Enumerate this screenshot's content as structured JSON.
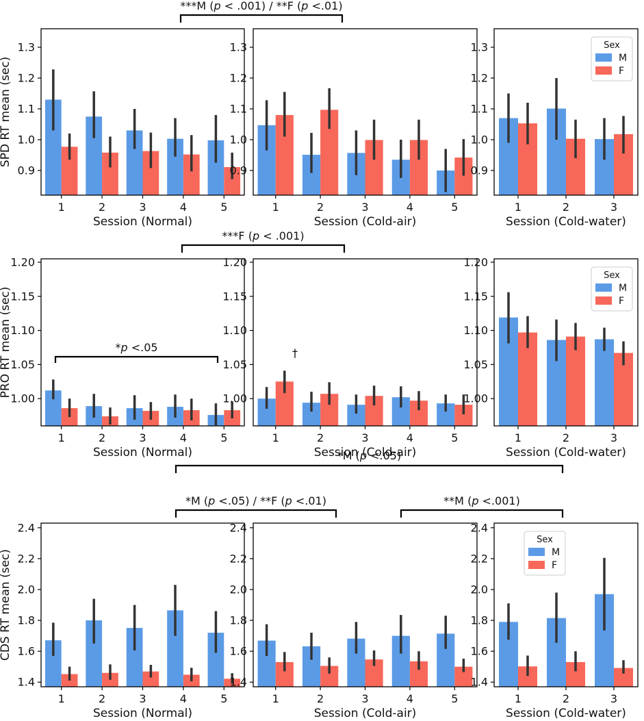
{
  "colors": {
    "M": "#5b9be6",
    "F": "#f7685a",
    "error_bar": "#333333",
    "axes": "#000000"
  },
  "legend": {
    "title": "Sex",
    "labels": [
      "M",
      "F"
    ]
  },
  "chart_data": [
    {
      "type": "bar",
      "id": "spd-normal",
      "row": 0,
      "col": 0,
      "ylabel": "SPD RT mean (sec)",
      "xlabel": "Session (Normal)",
      "categories": [
        "1",
        "2",
        "3",
        "4",
        "5"
      ],
      "ylim": [
        0.82,
        1.36
      ],
      "yticks": [
        0.9,
        1.0,
        1.1,
        1.2,
        1.3
      ],
      "ytick_labels": [
        "0.9",
        "1.0",
        "1.1",
        "1.2",
        "1.3"
      ],
      "legend": false,
      "series": [
        {
          "name": "M",
          "values": [
            1.13,
            1.075,
            1.03,
            1.003,
            0.998
          ],
          "err_low": [
            1.03,
            1.005,
            0.97,
            0.945,
            0.925
          ],
          "err_high": [
            1.228,
            1.157,
            1.1,
            1.07,
            1.08
          ]
        },
        {
          "name": "F",
          "values": [
            0.977,
            0.958,
            0.963,
            0.952,
            0.911
          ],
          "err_low": [
            0.935,
            0.91,
            0.908,
            0.897,
            0.872
          ],
          "err_high": [
            1.02,
            1.01,
            1.023,
            1.015,
            0.958
          ]
        }
      ]
    },
    {
      "type": "bar",
      "id": "spd-cold-air",
      "row": 0,
      "col": 1,
      "ylabel": "",
      "xlabel": "Session (Cold-air)",
      "categories": [
        "1",
        "2",
        "3",
        "4",
        "5"
      ],
      "ylim": [
        0.82,
        1.36
      ],
      "yticks": [
        0.9,
        1.0,
        1.1,
        1.2,
        1.3
      ],
      "ytick_labels": [
        "0.9",
        "1.0",
        "1.1",
        "1.2",
        "1.3"
      ],
      "legend": false,
      "series": [
        {
          "name": "M",
          "values": [
            1.047,
            0.951,
            0.957,
            0.935,
            0.9
          ],
          "err_low": [
            0.965,
            0.892,
            0.885,
            0.876,
            0.83
          ],
          "err_high": [
            1.128,
            1.022,
            1.03,
            1.0,
            0.97
          ]
        },
        {
          "name": "F",
          "values": [
            1.08,
            1.097,
            0.999,
            0.999,
            0.942
          ],
          "err_low": [
            1.01,
            1.035,
            0.935,
            0.935,
            0.883
          ],
          "err_high": [
            1.155,
            1.167,
            1.065,
            1.065,
            1.002
          ]
        }
      ]
    },
    {
      "type": "bar",
      "id": "spd-cold-water",
      "row": 0,
      "col": 2,
      "ylabel": "",
      "xlabel": "Session (Cold-water)",
      "categories": [
        "1",
        "2",
        "3"
      ],
      "ylim": [
        0.82,
        1.36
      ],
      "yticks": [
        0.9,
        1.0,
        1.1,
        1.2,
        1.3
      ],
      "ytick_labels": [
        "0.9",
        "1.0",
        "1.1",
        "1.2",
        "1.3"
      ],
      "legend": true,
      "series": [
        {
          "name": "M",
          "values": [
            1.07,
            1.101,
            1.002
          ],
          "err_low": [
            0.99,
            1.0,
            0.935
          ],
          "err_high": [
            1.15,
            1.2,
            1.07
          ]
        },
        {
          "name": "F",
          "values": [
            1.053,
            1.003,
            1.018
          ],
          "err_low": [
            0.985,
            0.94,
            0.955
          ],
          "err_high": [
            1.12,
            1.065,
            1.077
          ]
        }
      ]
    },
    {
      "type": "bar",
      "id": "pro-normal",
      "row": 1,
      "col": 0,
      "ylabel": "PRO RT mean (sec)",
      "xlabel": "Session (Normal)",
      "categories": [
        "1",
        "2",
        "3",
        "4",
        "5"
      ],
      "ylim": [
        0.96,
        1.205
      ],
      "yticks": [
        1.0,
        1.05,
        1.1,
        1.15,
        1.2
      ],
      "ytick_labels": [
        "1.00",
        "1.05",
        "1.10",
        "1.15",
        "1.20"
      ],
      "legend": false,
      "series": [
        {
          "name": "M",
          "values": [
            1.012,
            0.989,
            0.986,
            0.988,
            0.976
          ],
          "err_low": [
            0.999,
            0.972,
            0.969,
            0.972,
            0.961
          ],
          "err_high": [
            1.028,
            1.007,
            1.005,
            1.006,
            0.993
          ]
        },
        {
          "name": "F",
          "values": [
            0.986,
            0.974,
            0.982,
            0.983,
            0.983
          ],
          "err_low": [
            0.973,
            0.962,
            0.969,
            0.968,
            0.971
          ],
          "err_high": [
            1.0,
            0.987,
            0.995,
            1.0,
            0.996
          ]
        }
      ]
    },
    {
      "type": "bar",
      "id": "pro-cold-air",
      "row": 1,
      "col": 1,
      "ylabel": "",
      "xlabel": "Session (Cold-air)",
      "categories": [
        "1",
        "2",
        "3",
        "4",
        "5"
      ],
      "ylim": [
        0.96,
        1.205
      ],
      "yticks": [
        1.0,
        1.05,
        1.1,
        1.15,
        1.2
      ],
      "ytick_labels": [
        "1.00",
        "1.05",
        "1.10",
        "1.15",
        "1.20"
      ],
      "legend": false,
      "series": [
        {
          "name": "M",
          "values": [
            1.0,
            0.994,
            0.991,
            1.002,
            0.993
          ],
          "err_low": [
            0.985,
            0.981,
            0.978,
            0.987,
            0.981
          ],
          "err_high": [
            1.017,
            1.01,
            1.006,
            1.018,
            1.006
          ]
        },
        {
          "name": "F",
          "values": [
            1.025,
            1.007,
            1.004,
            0.997,
            0.991
          ],
          "err_low": [
            1.008,
            0.991,
            0.99,
            0.983,
            0.977
          ],
          "err_high": [
            1.041,
            1.024,
            1.019,
            1.011,
            1.006
          ]
        }
      ]
    },
    {
      "type": "bar",
      "id": "pro-cold-water",
      "row": 1,
      "col": 2,
      "ylabel": "",
      "xlabel": "Session (Cold-water)",
      "categories": [
        "1",
        "2",
        "3"
      ],
      "ylim": [
        0.96,
        1.205
      ],
      "yticks": [
        1.0,
        1.05,
        1.1,
        1.15,
        1.2
      ],
      "ytick_labels": [
        "1.00",
        "1.05",
        "1.10",
        "1.15",
        "1.20"
      ],
      "legend": true,
      "series": [
        {
          "name": "M",
          "values": [
            1.119,
            1.086,
            1.087
          ],
          "err_low": [
            1.081,
            1.055,
            1.07
          ],
          "err_high": [
            1.156,
            1.116,
            1.104
          ]
        },
        {
          "name": "F",
          "values": [
            1.097,
            1.091,
            1.067
          ],
          "err_low": [
            1.074,
            1.071,
            1.049
          ],
          "err_high": [
            1.121,
            1.111,
            1.084
          ]
        }
      ]
    },
    {
      "type": "bar",
      "id": "cds-normal",
      "row": 2,
      "col": 0,
      "ylabel": "CDS RT mean (sec)",
      "xlabel": "Session (Normal)",
      "categories": [
        "1",
        "2",
        "3",
        "4",
        "5"
      ],
      "ylim": [
        1.37,
        2.43
      ],
      "yticks": [
        1.4,
        1.6,
        1.8,
        2.0,
        2.2,
        2.4
      ],
      "ytick_labels": [
        "1.4",
        "1.6",
        "1.8",
        "2.0",
        "2.2",
        "2.4"
      ],
      "legend": false,
      "series": [
        {
          "name": "M",
          "values": [
            1.671,
            1.8,
            1.751,
            1.865,
            1.72
          ],
          "err_low": [
            1.57,
            1.65,
            1.605,
            1.7,
            1.59
          ],
          "err_high": [
            1.785,
            1.94,
            1.9,
            2.03,
            1.86
          ]
        },
        {
          "name": "F",
          "values": [
            1.452,
            1.46,
            1.469,
            1.448,
            1.422
          ],
          "err_low": [
            1.41,
            1.415,
            1.43,
            1.405,
            1.39
          ],
          "err_high": [
            1.5,
            1.515,
            1.512,
            1.493,
            1.458
          ]
        }
      ]
    },
    {
      "type": "bar",
      "id": "cds-cold-air",
      "row": 2,
      "col": 1,
      "ylabel": "",
      "xlabel": "Session (Cold-air)",
      "categories": [
        "1",
        "2",
        "3",
        "4",
        "5"
      ],
      "ylim": [
        1.37,
        2.43
      ],
      "yticks": [
        1.4,
        1.6,
        1.8,
        2.0,
        2.2,
        2.4
      ],
      "ytick_labels": [
        "1.4",
        "1.6",
        "1.8",
        "2.0",
        "2.2",
        "2.4"
      ],
      "legend": false,
      "series": [
        {
          "name": "M",
          "values": [
            1.669,
            1.632,
            1.682,
            1.7,
            1.714
          ],
          "err_low": [
            1.57,
            1.545,
            1.585,
            1.585,
            1.615
          ],
          "err_high": [
            1.775,
            1.72,
            1.79,
            1.835,
            1.83
          ]
        },
        {
          "name": "F",
          "values": [
            1.53,
            1.505,
            1.547,
            1.535,
            1.5
          ],
          "err_low": [
            1.47,
            1.455,
            1.505,
            1.48,
            1.465
          ],
          "err_high": [
            1.595,
            1.56,
            1.605,
            1.6,
            1.552
          ]
        }
      ]
    },
    {
      "type": "bar",
      "id": "cds-cold-water",
      "row": 2,
      "col": 2,
      "ylabel": "",
      "xlabel": "Session (Cold-water)",
      "categories": [
        "1",
        "2",
        "3"
      ],
      "ylim": [
        1.37,
        2.43
      ],
      "yticks": [
        1.4,
        1.6,
        1.8,
        2.0,
        2.2,
        2.4
      ],
      "ytick_labels": [
        "1.4",
        "1.6",
        "1.8",
        "2.0",
        "2.2",
        "2.4"
      ],
      "legend": true,
      "series": [
        {
          "name": "M",
          "values": [
            1.79,
            1.815,
            1.97
          ],
          "err_low": [
            1.675,
            1.655,
            1.735
          ],
          "err_high": [
            1.91,
            1.98,
            2.205
          ]
        },
        {
          "name": "F",
          "values": [
            1.502,
            1.53,
            1.492
          ],
          "err_low": [
            1.44,
            1.47,
            1.455
          ],
          "err_high": [
            1.572,
            1.6,
            1.542
          ]
        }
      ]
    }
  ],
  "annotations": [
    {
      "id": "sig-spd-normal-cold-air",
      "text_parts": [
        "***M (",
        "p",
        " < .001) / **F (",
        "p",
        " <.01)"
      ]
    },
    {
      "id": "sig-pro-normal-cold-air",
      "text_parts": [
        "***F (",
        "p",
        " < .001)"
      ]
    },
    {
      "id": "sig-pro-normal-1-5",
      "text_parts": [
        "*",
        "p",
        " <.05"
      ]
    },
    {
      "id": "dagger-pro-cold-air-1",
      "text_parts": [
        "†"
      ]
    },
    {
      "id": "sig-cds-normal-cold-water",
      "text_parts": [
        "*M (",
        "p",
        " <.05)"
      ]
    },
    {
      "id": "sig-cds-normal-cold-air",
      "text_parts": [
        "*M (",
        "p",
        " <.05) / **F (",
        "p",
        " <.01)"
      ]
    },
    {
      "id": "sig-cds-cold-air-cold-water",
      "text_parts": [
        "**M (",
        "p",
        " <.001)"
      ]
    }
  ]
}
